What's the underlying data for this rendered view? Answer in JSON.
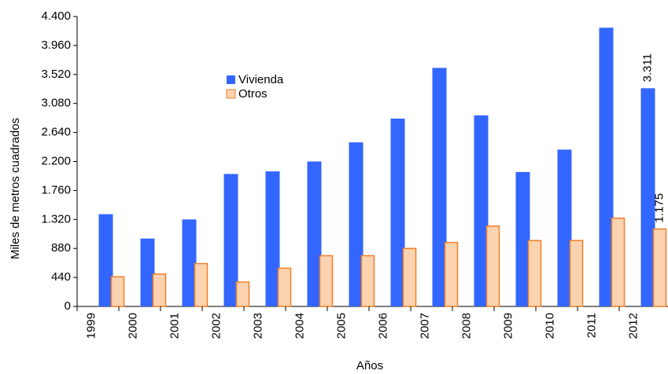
{
  "chart_data": {
    "type": "bar",
    "y_label": "Miles de metros cuadrados",
    "x_label": "Años",
    "categories": [
      "1999",
      "2000",
      "2001",
      "2002",
      "2003",
      "2004",
      "2005",
      "2006",
      "2007",
      "2008",
      "2009",
      "2010",
      "2011",
      "2012"
    ],
    "series": [
      {
        "name": "Vivienda",
        "color": "#3366ff",
        "values": [
          1400,
          1030,
          1320,
          2010,
          2050,
          2200,
          2490,
          2850,
          3620,
          2900,
          2040,
          2380,
          4230,
          3311
        ],
        "value_labels": [
          null,
          null,
          null,
          null,
          null,
          null,
          null,
          null,
          null,
          null,
          null,
          null,
          null,
          "3.311"
        ]
      },
      {
        "name": "Otros",
        "color": "#fbd3b0",
        "values": [
          450,
          490,
          650,
          370,
          580,
          770,
          770,
          880,
          970,
          1220,
          1000,
          1000,
          1340,
          1175
        ],
        "value_labels": [
          null,
          null,
          null,
          null,
          null,
          null,
          null,
          null,
          null,
          null,
          null,
          null,
          null,
          "1.175"
        ]
      }
    ],
    "ylim": [
      0,
      4400
    ],
    "yticks": [
      0,
      {
        "value": 440,
        "label": "440"
      },
      {
        "value": 880,
        "label": "880"
      },
      {
        "value": 1320,
        "label": "1.320"
      },
      {
        "value": 1760,
        "label": "1.760"
      },
      {
        "value": 2200,
        "label": "2.200"
      },
      {
        "value": 2640,
        "label": "2.640"
      },
      {
        "value": 3080,
        "label": "3.080"
      },
      {
        "value": 3520,
        "label": "3.520"
      },
      {
        "value": 3960,
        "label": "3.960"
      },
      {
        "value": 4400,
        "label": "4.400"
      }
    ]
  }
}
